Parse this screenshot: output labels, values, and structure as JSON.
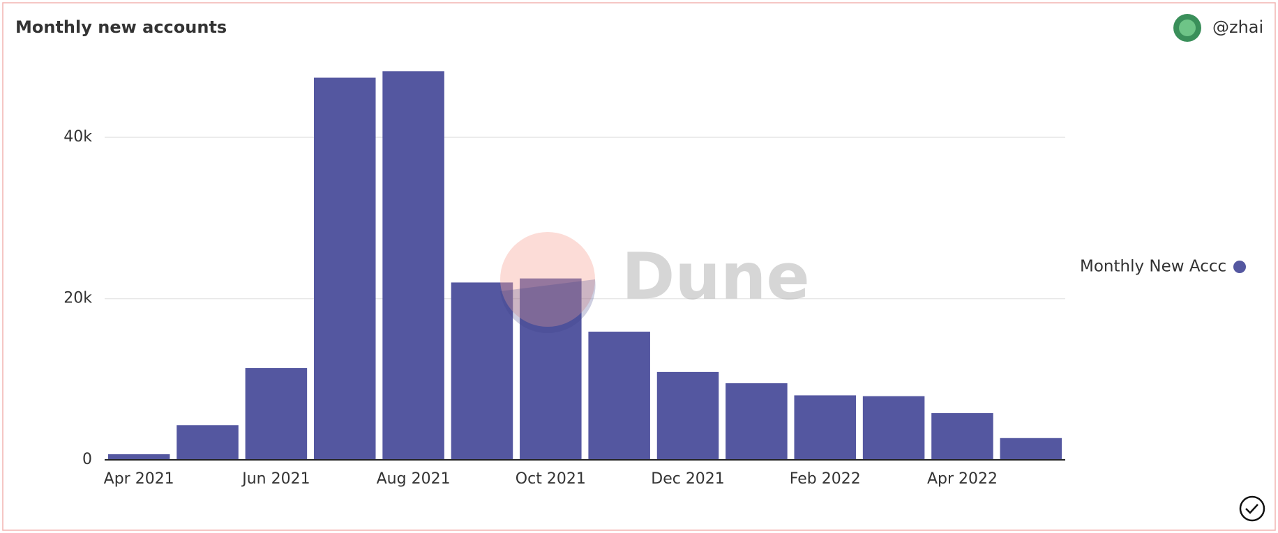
{
  "chart_data": {
    "type": "bar",
    "title": "Monthly new accounts",
    "user": "@zhai",
    "watermark": "Dune",
    "categories": [
      "Apr 2021",
      null,
      "Jun 2021",
      null,
      "Aug 2021",
      null,
      "Oct 2021",
      null,
      "Dec 2021",
      null,
      "Feb 2022",
      null,
      "Apr 2022",
      null
    ],
    "series": [
      {
        "name": "Monthly New Accc",
        "color": "#5457a0",
        "values": [
          700,
          4300,
          11400,
          47400,
          48200,
          22000,
          22500,
          15900,
          10900,
          9500,
          8000,
          7900,
          5800,
          2700
        ]
      }
    ],
    "ylim": [
      0,
      49000
    ],
    "yticks": [
      0,
      {
        "value": 20000,
        "label": "20k"
      },
      {
        "value": 40000,
        "label": "40k"
      }
    ],
    "grid": true,
    "legend": "right"
  }
}
